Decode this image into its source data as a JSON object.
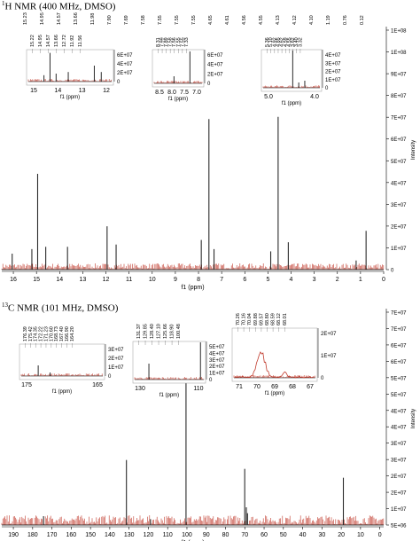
{
  "colors": {
    "axis": "#000000",
    "peak": "#2b2b2b",
    "noise": "#c0392b"
  },
  "h_panel": {
    "title_sup": "1",
    "title_rest": "H NMR (400 MHz, DMSO)",
    "xlabel": "f1 (ppm)",
    "ylabel": "Intensity",
    "xticks": [
      "16",
      "15",
      "14",
      "13",
      "12",
      "11",
      "10",
      "9",
      "8",
      "7",
      "6",
      "5",
      "4",
      "3",
      "2",
      "1",
      "0"
    ],
    "yticks": [
      "0",
      "1E+07",
      "2E+07",
      "3E+07",
      "4E+07",
      "5E+07",
      "6E+07",
      "7E+07",
      "8E+07",
      "9E+07",
      "1E+08",
      "1E+08"
    ],
    "peak_labels_top": [
      "15.23",
      "14.95",
      "14.57",
      "13.66",
      "11.98",
      "7.90",
      "7.69",
      "7.58",
      "7.55",
      "7.55",
      "7.55",
      "4.65",
      "4.61",
      "4.56",
      "4.55",
      "4.13",
      "4.12",
      "4.10",
      "1.19",
      "0.76",
      "0.12"
    ],
    "insets": [
      {
        "xticks": [
          "15",
          "14",
          "13",
          "12"
        ],
        "xlabel": "f1 (ppm)",
        "yticks": [
          "0",
          "2E+07",
          "4E+07",
          "6E+07"
        ],
        "labels": [
          "15.22",
          "14.95",
          "14.57",
          "13.66",
          "12.72",
          "11.92",
          "11.56"
        ]
      },
      {
        "xticks": [
          "8.5",
          "8.0",
          "7.5",
          "7.0"
        ],
        "xlabel": "f1 (ppm)",
        "yticks": [
          "0",
          "2E+07",
          "4E+07",
          "6E+07"
        ],
        "labels": [
          "8.31",
          "7.99",
          "7.89",
          "7.58",
          "7.56",
          "7.55",
          "7.55",
          "7.33"
        ]
      },
      {
        "xticks": [
          "5.0",
          "4.0"
        ],
        "xlabel": "f1 (ppm)",
        "yticks": [
          "0",
          "1E+07",
          "2E+07",
          "3E+07",
          "4E+07"
        ],
        "labels": [
          "5.36",
          "5.10",
          "4.92",
          "4.85",
          "4.62",
          "4.59",
          "4.55",
          "3.62",
          "3.40",
          "3.32"
        ]
      }
    ]
  },
  "c_panel": {
    "title_sup": "13",
    "title_rest": "C NMR (101 MHz, DMSO)",
    "xlabel": "f1 (ppm)",
    "ylabel": "Intensity",
    "xticks": [
      "190",
      "180",
      "170",
      "160",
      "150",
      "140",
      "130",
      "120",
      "110",
      "100",
      "90",
      "80",
      "70",
      "60",
      "50",
      "40",
      "30",
      "20",
      "10",
      "0"
    ],
    "yticks": [
      "5E+06",
      "1E+07",
      "2E+07",
      "2E+07",
      "3E+07",
      "3E+07",
      "4E+07",
      "4E+07",
      "5E+07",
      "5E+07",
      "6E+07",
      "6E+07",
      "7E+07",
      "7E+07"
    ],
    "insets": [
      {
        "xticks": [
          "175",
          "165"
        ],
        "xlabel": "f1 (ppm)",
        "yticks": [
          "0",
          "1E+07",
          "2E+07",
          "3E+07"
        ],
        "labels": [
          "176.39",
          "175.42",
          "174.35",
          "172.22",
          "171.23",
          "170.60",
          "168.73",
          "167.40",
          "166.90",
          "164.20"
        ]
      },
      {
        "xticks": [
          "130",
          "110"
        ],
        "xlabel": "f1 (ppm)",
        "yticks": [
          "0",
          "1E+07",
          "2E+07",
          "3E+07",
          "4E+07",
          "5E+07"
        ],
        "labels": [
          "131.37",
          "129.85",
          "128.40",
          "127.10",
          "125.66",
          "118.90",
          "100.48"
        ]
      },
      {
        "xticks": [
          "71",
          "70",
          "69",
          "68",
          "67"
        ],
        "xlabel": "f1 (ppm)",
        "yticks": [
          "0",
          "1E+07",
          "2E+07"
        ],
        "labels": [
          "70.26",
          "70.16",
          "70.04",
          "69.88",
          "69.57",
          "68.80",
          "68.59",
          "68.12",
          "68.01"
        ]
      }
    ]
  },
  "chart_data": [
    {
      "type": "line",
      "title": "1H NMR (400 MHz, DMSO)",
      "xlabel": "f1 (ppm)",
      "ylabel": "Intensity",
      "xlim": [
        16.5,
        0
      ],
      "ylim": [
        0,
        105000000.0
      ],
      "peaks": [
        {
          "x": 16.05,
          "y": 7000000.0
        },
        {
          "x": 15.2,
          "y": 9000000.0
        },
        {
          "x": 14.95,
          "y": 42000000.0
        },
        {
          "x": 14.6,
          "y": 10000000.0
        },
        {
          "x": 13.66,
          "y": 10000000.0
        },
        {
          "x": 11.95,
          "y": 19000000.0
        },
        {
          "x": 11.56,
          "y": 11000000.0
        },
        {
          "x": 7.88,
          "y": 13000000.0
        },
        {
          "x": 7.55,
          "y": 66000000.0
        },
        {
          "x": 7.33,
          "y": 9000000.0
        },
        {
          "x": 4.88,
          "y": 8000000.0
        },
        {
          "x": 4.56,
          "y": 67000000.0
        },
        {
          "x": 4.12,
          "y": 12000000.0
        },
        {
          "x": 1.19,
          "y": 4000000.0
        },
        {
          "x": 0.76,
          "y": 17000000.0
        }
      ]
    },
    {
      "type": "line",
      "title": "13C NMR (101 MHz, DMSO)",
      "xlabel": "f1 (ppm)",
      "ylabel": "Intensity",
      "xlim": [
        196,
        -2
      ],
      "ylim": [
        0,
        72000000.0
      ],
      "peaks": [
        {
          "x": 174.35,
          "y": 3000000.0
        },
        {
          "x": 131.37,
          "y": 22000000.0
        },
        {
          "x": 118.9,
          "y": 2000000.0
        },
        {
          "x": 100.48,
          "y": 55000000.0
        },
        {
          "x": 70.04,
          "y": 19000000.0
        },
        {
          "x": 69.2,
          "y": 6000000.0
        },
        {
          "x": 68.6,
          "y": 4000000.0
        },
        {
          "x": 18.9,
          "y": 16000000.0
        }
      ]
    }
  ]
}
